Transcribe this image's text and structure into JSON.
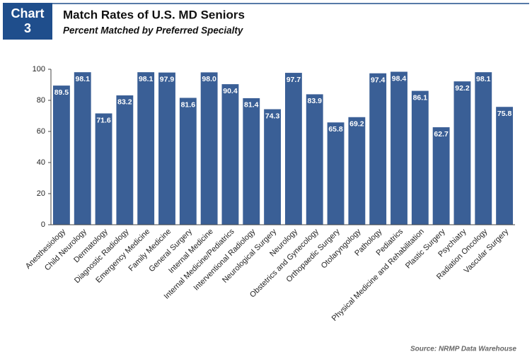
{
  "chart_data": {
    "type": "bar",
    "badge": [
      "Chart",
      "3"
    ],
    "title": "Match Rates of U.S. MD Seniors",
    "subtitle": "Percent Matched by Preferred Specialty",
    "source": "Source: NRMP Data Warehouse",
    "categories": [
      "Anesthesiology",
      "Child Neurology",
      "Dermatology",
      "Diagnostic Radiology",
      "Emergency Medicine",
      "Family Medicine",
      "General Surgery",
      "Internal Medicine",
      "Internal Medicine/Pediatrics",
      "Interventional Radiology",
      "Neurological Surgery",
      "Neurology",
      "Obstetrics and Gynecology",
      "Orthopaedic Surgery",
      "Otolaryngology",
      "Pathology",
      "Pediatrics",
      "Physical Medicine and Rehabilitation",
      "Plastic Surgery",
      "Psychiatry",
      "Radiation Oncology",
      "Vascular Surgery"
    ],
    "values": [
      89.5,
      98.1,
      71.6,
      83.2,
      98.1,
      97.9,
      81.6,
      98.0,
      90.4,
      81.4,
      74.3,
      97.7,
      83.9,
      65.8,
      69.2,
      97.4,
      98.4,
      86.1,
      62.7,
      92.2,
      98.1,
      75.8
    ],
    "value_labels": [
      "89.5",
      "98.1",
      "71.6",
      "83.2",
      "98.1",
      "97.9",
      "81.6",
      "98.0",
      "90.4",
      "81.4",
      "74.3",
      "97.7",
      "83.9",
      "65.8",
      "69.2",
      "97.4",
      "98.4",
      "86.1",
      "62.7",
      "92.2",
      "98.1",
      "75.8"
    ],
    "color": "#3a5f96",
    "ylim": [
      0,
      100
    ],
    "yticks": [
      0,
      20,
      40,
      60,
      80,
      100
    ],
    "grid": false
  }
}
